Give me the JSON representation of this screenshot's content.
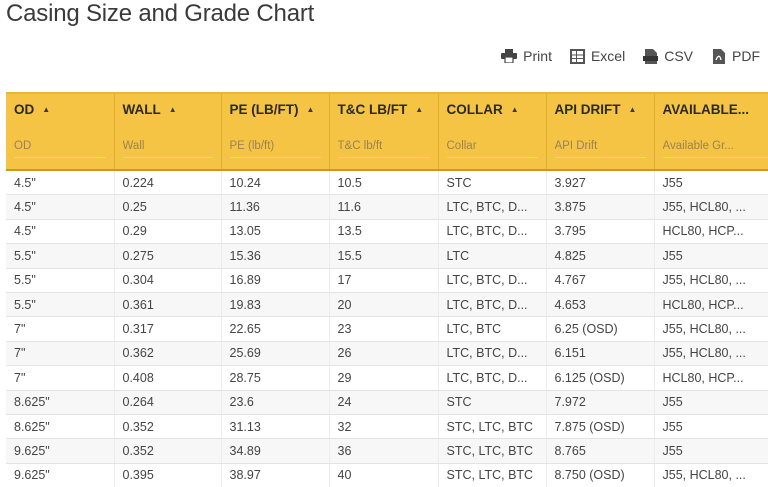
{
  "page": {
    "title": "Casing Size and Grade Chart"
  },
  "toolbar": {
    "print_label": "Print",
    "excel_label": "Excel",
    "csv_label": "CSV",
    "pdf_label": "PDF"
  },
  "table": {
    "columns": [
      {
        "label": "OD",
        "placeholder": "OD"
      },
      {
        "label": "WALL",
        "placeholder": "Wall"
      },
      {
        "label": "PE (LB/FT)",
        "placeholder": "PE (lb/ft)"
      },
      {
        "label": "T&C LB/FT",
        "placeholder": "T&C lb/ft"
      },
      {
        "label": "COLLAR",
        "placeholder": "Collar"
      },
      {
        "label": "API DRIFT",
        "placeholder": "API Drift"
      },
      {
        "label": "AVAILABLE...",
        "placeholder": "Available Gr..."
      }
    ],
    "rows": [
      [
        "4.5\"",
        "0.224",
        "10.24",
        "10.5",
        "STC",
        "3.927",
        "J55"
      ],
      [
        "4.5\"",
        "0.25",
        "11.36",
        "11.6",
        "LTC, BTC, D...",
        "3.875",
        "J55, HCL80, ..."
      ],
      [
        "4.5\"",
        "0.29",
        "13.05",
        "13.5",
        "LTC, BTC, D...",
        "3.795",
        "HCL80, HCP..."
      ],
      [
        "5.5\"",
        "0.275",
        "15.36",
        "15.5",
        "LTC",
        "4.825",
        "J55"
      ],
      [
        "5.5\"",
        "0.304",
        "16.89",
        "17",
        "LTC, BTC, D...",
        "4.767",
        "J55, HCL80, ..."
      ],
      [
        "5.5\"",
        "0.361",
        "19.83",
        "20",
        "LTC, BTC, D...",
        "4.653",
        "HCL80, HCP..."
      ],
      [
        "7\"",
        "0.317",
        "22.65",
        "23",
        "LTC, BTC",
        "6.25 (OSD)",
        "J55, HCL80, ..."
      ],
      [
        "7\"",
        "0.362",
        "25.69",
        "26",
        "LTC, BTC, D...",
        "6.151",
        "J55, HCL80, ..."
      ],
      [
        "7\"",
        "0.408",
        "28.75",
        "29",
        "LTC, BTC, D...",
        "6.125 (OSD)",
        "HCL80, HCP..."
      ],
      [
        "8.625\"",
        "0.264",
        "23.6",
        "24",
        "STC",
        "7.972",
        "J55"
      ],
      [
        "8.625\"",
        "0.352",
        "31.13",
        "32",
        "STC, LTC, BTC",
        "7.875 (OSD)",
        "J55"
      ],
      [
        "9.625\"",
        "0.352",
        "34.89",
        "36",
        "STC, LTC, BTC",
        "8.765",
        "J55"
      ],
      [
        "9.625\"",
        "0.395",
        "38.97",
        "40",
        "STC, LTC, BTC",
        "8.750 (OSD)",
        "J55, HCL80, ..."
      ]
    ]
  },
  "icons": {
    "print": "printer-icon",
    "excel": "excel-icon",
    "csv": "csv-icon",
    "pdf": "pdf-icon",
    "sort": "sort-ascending-icon"
  },
  "colors": {
    "header_bg": "#f6c444",
    "row_alt_bg": "#f7f7f7",
    "text": "#444444"
  }
}
